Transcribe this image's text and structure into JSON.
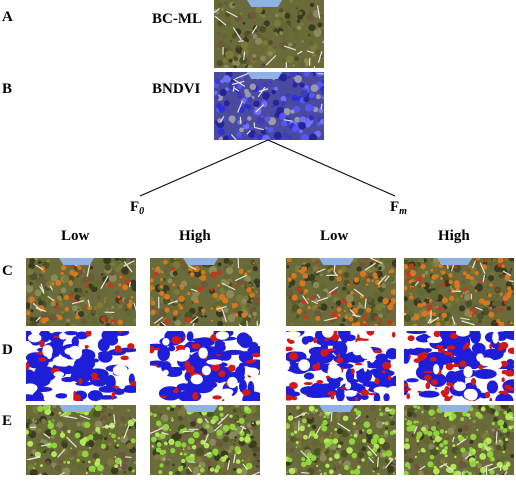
{
  "rows": {
    "A": {
      "letter": "A",
      "label": "BC-ML"
    },
    "B": {
      "letter": "B",
      "label": "BNDVI"
    },
    "C": {
      "letter": "C"
    },
    "D": {
      "letter": "D"
    },
    "E": {
      "letter": "E"
    }
  },
  "branches": {
    "left": {
      "main": "F",
      "sub": "0"
    },
    "right": {
      "main": "F",
      "sub": "m"
    }
  },
  "columns": [
    "Low",
    "High",
    "Low",
    "High"
  ],
  "colors": {
    "moss_base": "#6a6a3a",
    "bndvi_blue": "#3a3ae0",
    "mask_red": "#d41818",
    "mask_blue": "#1e1ed8",
    "veg_green": "#8fd43a",
    "orange": "#d8781e",
    "sky_blue": "#8fb2e0"
  }
}
